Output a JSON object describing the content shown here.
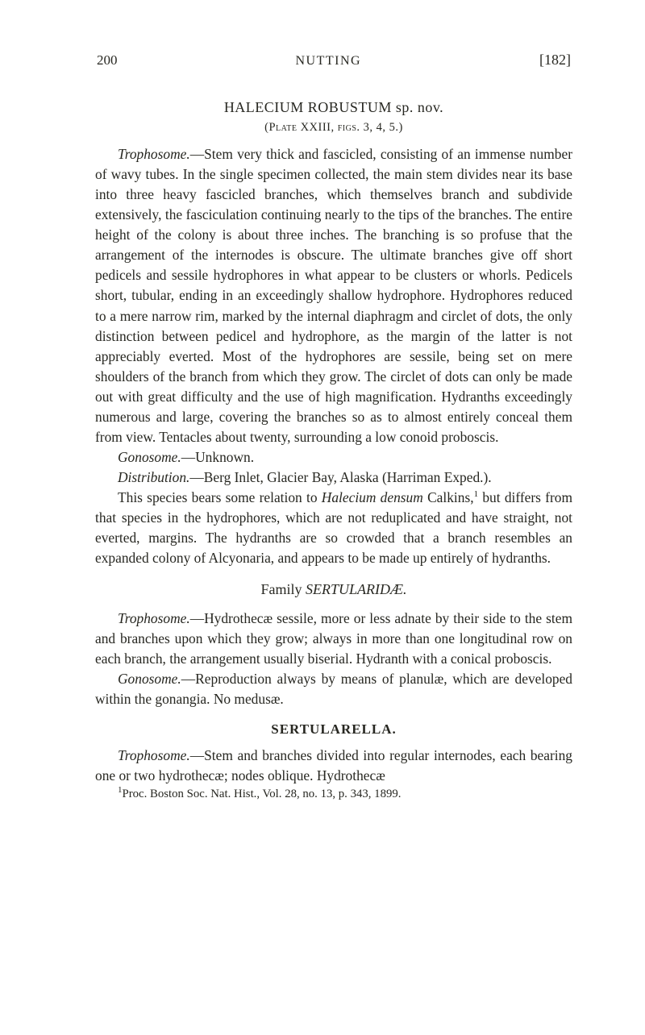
{
  "header": {
    "page_number": "200",
    "running_title": "NUTTING",
    "bracket_number": "[182]"
  },
  "species": {
    "heading": "HALECIUM ROBUSTUM sp. nov.",
    "plate_line": "(Plate XXIII, figs. 3, 4, 5.)"
  },
  "para1": {
    "lead_word": "Trophosome.",
    "text": "—Stem very thick and fascicled, consisting of an immense number of wavy tubes. In the single specimen collected, the main stem divides near its base into three heavy fascicled branches, which themselves branch and subdivide extensively, the fasciculation continuing nearly to the tips of the branches. The entire height of the colony is about three inches. The branching is so profuse that the arrangement of the internodes is obscure. The ultimate branches give off short pedicels and sessile hydrophores in what appear to be clusters or whorls. Pedicels short, tubular, ending in an exceedingly shallow hydrophore. Hydrophores reduced to a mere narrow rim, marked by the internal diaphragm and circlet of dots, the only distinction between pedicel and hydrophore, as the margin of the latter is not appreciably everted. Most of the hydrophores are sessile, being set on mere shoulders of the branch from which they grow. The circlet of dots can only be made out with great difficulty and the use of high magnification. Hydranths exceedingly numerous and large, covering the branches so as to almost entirely conceal them from view. Tentacles about twenty, surrounding a low conoid proboscis."
  },
  "para2": {
    "lead_word": "Gonosome.",
    "text": "—Unknown."
  },
  "para3": {
    "lead_word": "Distribution.",
    "text": "—Berg Inlet, Glacier Bay, Alaska (Harriman Exped.)."
  },
  "para4": {
    "pre": "This species bears some relation to ",
    "ital": "Halecium densum",
    "post1": " Calkins,",
    "sup": "1",
    "post2": " but differs from that species in the hydrophores, which are not reduplicated and have straight, not everted, margins. The hydranths are so crowded that a branch resembles an expanded colony of Alcyonaria, and appears to be made up entirely of hydranths."
  },
  "family": {
    "label": "Family ",
    "name": "SERTULARIDÆ."
  },
  "para5": {
    "lead_word": "Trophosome.",
    "text": "—Hydrothecæ sessile, more or less adnate by their side to the stem and branches upon which they grow; always in more than one longitudinal row on each branch, the arrangement usually biserial. Hydranth with a conical proboscis."
  },
  "para6": {
    "lead_word": "Gonosome.",
    "text": "—Reproduction always by means of planulæ, which are developed within the gonangia. No medusæ."
  },
  "genus": {
    "heading": "SERTULARELLA."
  },
  "para7": {
    "lead_word": "Trophosome.",
    "text": "—Stem and branches divided into regular internodes, each bearing one or two hydrothecæ; nodes oblique. Hydrothecæ"
  },
  "footnote": {
    "sup": "1",
    "text": "Proc. Boston Soc. Nat. Hist., Vol. 28, no. 13, p. 343, 1899."
  }
}
